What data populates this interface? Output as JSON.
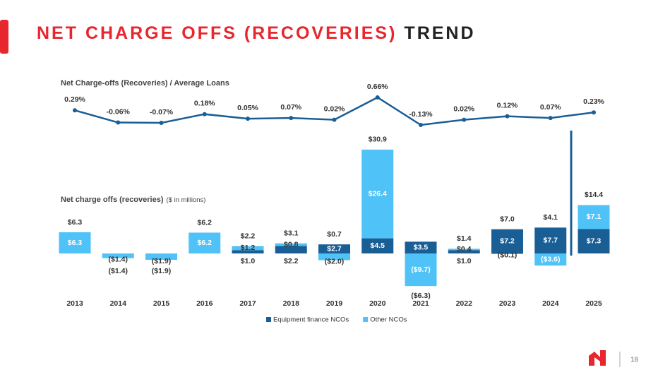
{
  "header": {
    "title_red": "NET CHARGE OFFS (RECOVERIES)",
    "title_dark": "TREND"
  },
  "page_number": "18",
  "chart_data": [
    {
      "type": "line",
      "title": "Net Charge-offs (Recoveries) / Average Loans",
      "categories": [
        "2013",
        "2014",
        "2015",
        "2016",
        "2017",
        "2018",
        "2019",
        "2020",
        "2021",
        "2022",
        "2023",
        "2024",
        "2025"
      ],
      "color": "#1a5e96",
      "values": [
        0.29,
        -0.06,
        -0.07,
        0.18,
        0.05,
        0.07,
        0.02,
        0.66,
        -0.13,
        0.02,
        0.12,
        0.07,
        0.23
      ],
      "value_labels": [
        "0.29%",
        "-0.06%",
        "-0.07%",
        "0.18%",
        "0.05%",
        "0.07%",
        "0.02%",
        "0.66%",
        "-0.13%",
        "0.02%",
        "0.12%",
        "0.07%",
        "0.23%"
      ]
    },
    {
      "type": "stacked_bar",
      "title": "Net charge offs (recoveries)",
      "subtitle": "($ in millions)",
      "categories": [
        "2013",
        "2014",
        "2015",
        "2016",
        "2017",
        "2018",
        "2019",
        "2020",
        "2021",
        "2022",
        "2023",
        "2024",
        "2025"
      ],
      "series": [
        {
          "name": "Equipment finance NCOs",
          "color": "#1a5e96",
          "values": [
            null,
            null,
            null,
            null,
            1.0,
            2.2,
            2.7,
            4.5,
            3.5,
            1.0,
            7.2,
            7.7,
            7.3
          ],
          "value_labels": [
            null,
            null,
            null,
            null,
            "$1.0",
            "$2.2",
            "$2.7",
            "$4.5",
            "$3.5",
            "$1.0",
            "$7.2",
            "$7.7",
            "$7.3"
          ]
        },
        {
          "name": "Other NCOs",
          "color": "#4fc3f7",
          "values": [
            6.3,
            -1.4,
            -1.9,
            6.2,
            1.2,
            0.8,
            -2.0,
            26.4,
            -9.7,
            0.4,
            -0.1,
            -3.6,
            7.1
          ],
          "value_labels": [
            "$6.3",
            "($1.4)",
            "($1.9)",
            "$6.2",
            "$1.2",
            "$0.8",
            "($2.0)",
            "$26.4",
            "($9.7)",
            "$0.4",
            "($0.1)",
            "($3.6)",
            "$7.1"
          ]
        }
      ],
      "totals": [
        6.3,
        -1.4,
        -1.9,
        6.2,
        2.2,
        3.1,
        0.7,
        30.9,
        -6.3,
        1.4,
        7.0,
        4.1,
        14.4
      ],
      "total_labels": [
        "$6.3",
        "($1.4)",
        "($1.9)",
        "$6.2",
        "$2.2",
        "$3.1",
        "$0.7",
        "$30.9",
        "($6.3)",
        "$1.4",
        "$7.0",
        "$4.1",
        "$14.4"
      ]
    }
  ]
}
